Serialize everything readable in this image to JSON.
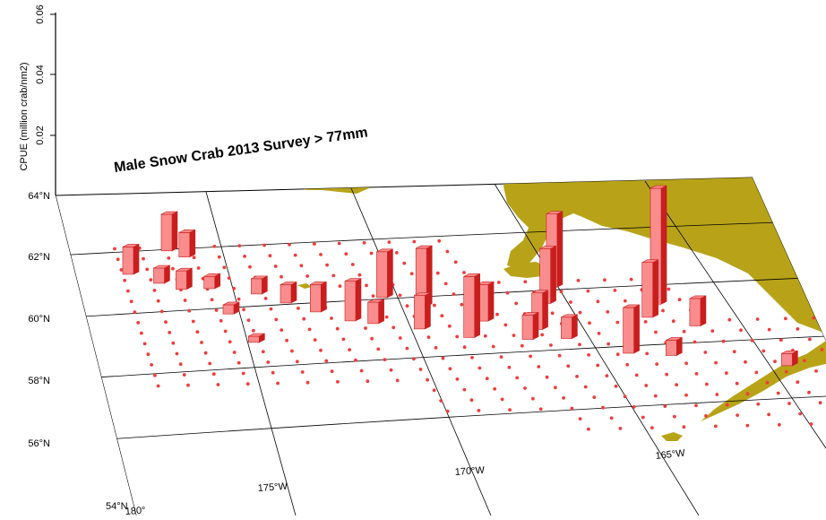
{
  "chart_data": {
    "type": "bar",
    "title": "Male Snow Crab 2013 Survey > 77mm",
    "zlabel": "CPUE (million crab/nm2)",
    "zticks": [
      "0.02",
      "0.04",
      "0.06"
    ],
    "zlim": [
      0,
      0.06
    ],
    "lat_ticks": [
      "64°N",
      "62°N",
      "60°N",
      "58°N",
      "56°N",
      "54°N"
    ],
    "lon_ticks": [
      "180°",
      "175°W",
      "170°W",
      "165°W"
    ],
    "colors": {
      "bar": "#f03c3c",
      "bar_light": "#f98c8c",
      "bar_side": "#c81e1e",
      "land": "#b8a318",
      "grid": "#000000"
    },
    "series": [
      {
        "values": [
          {
            "lon": -178.8,
            "lat": 61.5,
            "cpue": 0.009
          },
          {
            "lon": -178.1,
            "lat": 61.2,
            "cpue": 0.005
          },
          {
            "lon": -177.6,
            "lat": 62.2,
            "cpue": 0.012
          },
          {
            "lon": -177.2,
            "lat": 62.0,
            "cpue": 0.008
          },
          {
            "lon": -177.6,
            "lat": 61.0,
            "cpue": 0.006
          },
          {
            "lon": -176.9,
            "lat": 61.0,
            "cpue": 0.004
          },
          {
            "lon": -176.7,
            "lat": 60.2,
            "cpue": 0.003
          },
          {
            "lon": -175.8,
            "lat": 60.8,
            "cpue": 0.005
          },
          {
            "lon": -175.2,
            "lat": 60.5,
            "cpue": 0.006
          },
          {
            "lon": -174.6,
            "lat": 60.2,
            "cpue": 0.009
          },
          {
            "lon": -173.9,
            "lat": 59.9,
            "cpue": 0.013
          },
          {
            "lon": -173.4,
            "lat": 59.8,
            "cpue": 0.007
          },
          {
            "lon": -172.8,
            "lat": 60.6,
            "cpue": 0.015
          },
          {
            "lon": -172.4,
            "lat": 59.6,
            "cpue": 0.011
          },
          {
            "lon": -172.0,
            "lat": 60.3,
            "cpue": 0.019
          },
          {
            "lon": -171.4,
            "lat": 59.3,
            "cpue": 0.02
          },
          {
            "lon": -170.8,
            "lat": 59.8,
            "cpue": 0.012
          },
          {
            "lon": -170.1,
            "lat": 59.2,
            "cpue": 0.008
          },
          {
            "lon": -169.7,
            "lat": 59.5,
            "cpue": 0.012
          },
          {
            "lon": -169.2,
            "lat": 59.2,
            "cpue": 0.007
          },
          {
            "lon": -169.0,
            "lat": 60.3,
            "cpue": 0.018
          },
          {
            "lon": -168.5,
            "lat": 60.8,
            "cpue": 0.024
          },
          {
            "lon": -168.1,
            "lat": 58.7,
            "cpue": 0.015
          },
          {
            "lon": -166.9,
            "lat": 59.8,
            "cpue": 0.018
          },
          {
            "lon": -166.4,
            "lat": 60.2,
            "cpue": 0.038
          },
          {
            "lon": -166.0,
            "lat": 59.5,
            "cpue": 0.009
          },
          {
            "lon": -167.2,
            "lat": 58.6,
            "cpue": 0.005
          },
          {
            "lon": -164.9,
            "lat": 58.2,
            "cpue": 0.004
          },
          {
            "lon": -176.4,
            "lat": 59.3,
            "cpue": 0.002
          }
        ]
      }
    ]
  }
}
